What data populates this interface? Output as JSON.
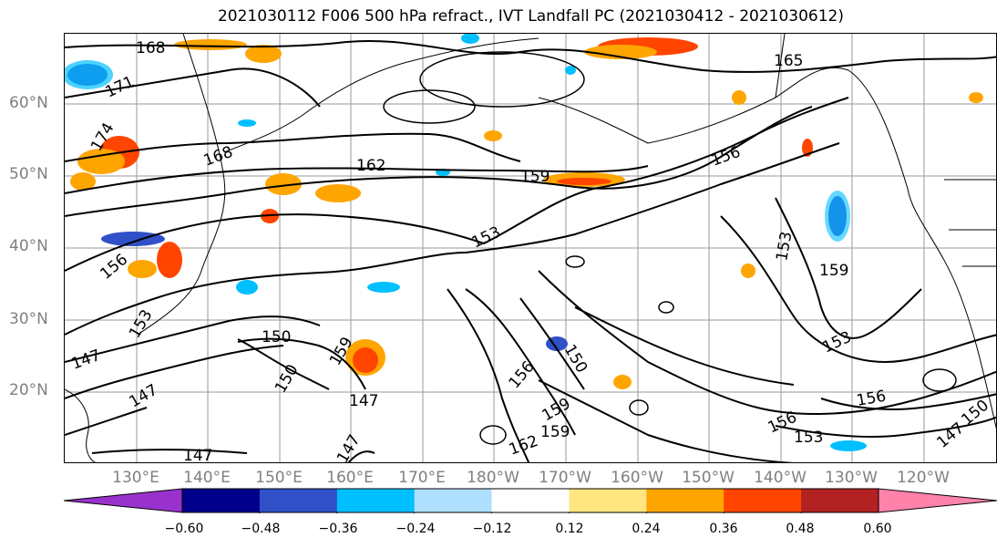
{
  "title": "2021030112 F006 500 hPa refract., IVT Landfall PC (2021030412 - 2021030612)",
  "lat_labels": [
    "60°N",
    "50°N",
    "40°N",
    "30°N",
    "20°N"
  ],
  "lon_labels": [
    "130°E",
    "140°E",
    "150°E",
    "160°E",
    "170°E",
    "180°W",
    "170°W",
    "160°W",
    "150°W",
    "140°W",
    "130°W",
    "120°W"
  ],
  "contour_labels": [
    "168",
    "171",
    "165",
    "174",
    "168",
    "162",
    "159",
    "156",
    "153",
    "153",
    "159",
    "156",
    "150",
    "159",
    "153",
    "150",
    "147",
    "147",
    "147",
    "156",
    "150",
    "159",
    "159",
    "162",
    "156",
    "153",
    "156",
    "147",
    "150",
    "147",
    "147",
    "153"
  ],
  "colorbar": {
    "colors": [
      "#9932cc",
      "#00008b",
      "#3050c8",
      "#00bfff",
      "#b0e0ff",
      "#ffffff",
      "#ffe680",
      "#ffa500",
      "#ff4500",
      "#b22222",
      "#ff82ab"
    ],
    "ticks": [
      "−0.60",
      "−0.48",
      "−0.36",
      "−0.24",
      "−0.12",
      "0.12",
      "0.24",
      "0.36",
      "0.48",
      "0.60"
    ]
  },
  "colors": {
    "contour": "#000000",
    "grid": "#808080",
    "axis_label": "#808080"
  }
}
